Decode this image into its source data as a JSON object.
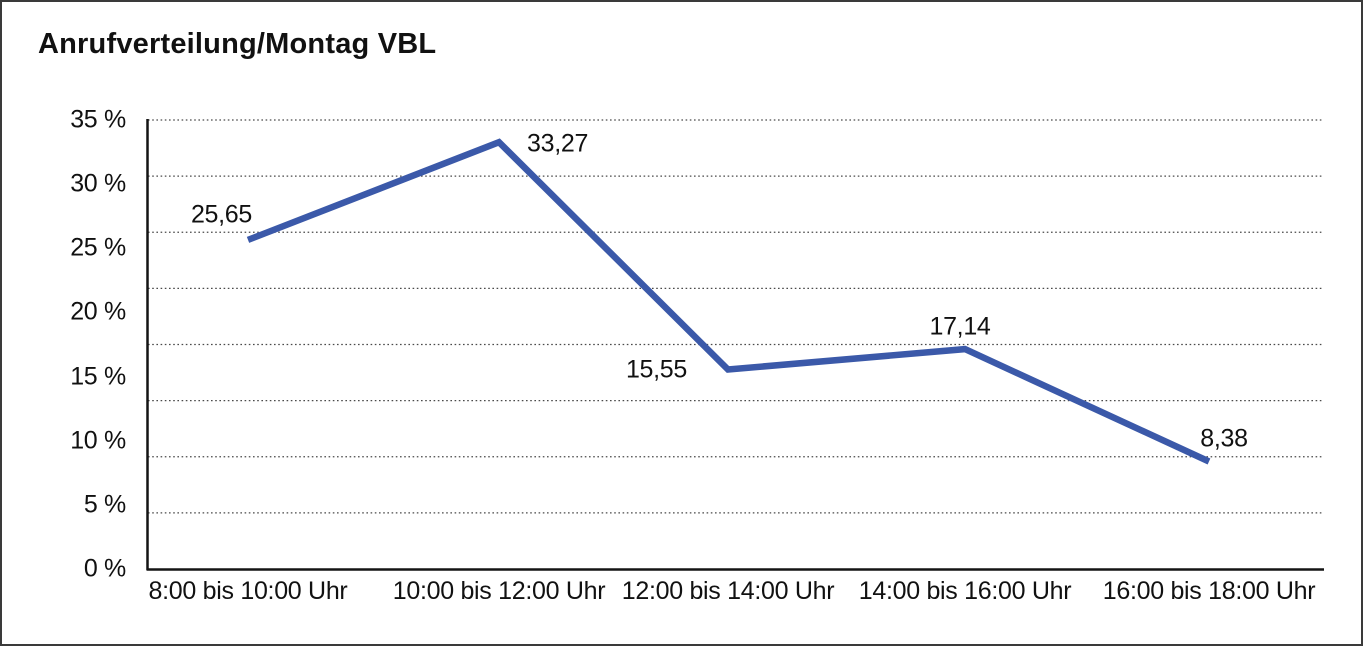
{
  "chart_data": {
    "type": "line",
    "title": "Anrufverteilung/Montag VBL",
    "categories": [
      "8:00 bis 10:00 Uhr",
      "10:00 bis 12:00 Uhr",
      "12:00 bis 14:00 Uhr",
      "14:00 bis 16:00 Uhr",
      "16:00 bis 18:00 Uhr"
    ],
    "values": [
      25.65,
      33.27,
      15.55,
      17.14,
      8.38
    ],
    "point_labels": [
      "25,65",
      "33,27",
      "15,55",
      "17,14",
      "8,38"
    ],
    "y_ticks": [
      "35 %",
      "30 %",
      "25 %",
      "20 %",
      "15 %",
      "10 %",
      "5 %",
      "0 %"
    ],
    "y_tick_values": [
      35,
      30,
      25,
      20,
      15,
      10,
      5,
      0
    ],
    "ylim": [
      0,
      35
    ],
    "xlabel": "",
    "ylabel": "",
    "legend": "none",
    "grid": "horizontal-dotted",
    "gridline_count": 9,
    "line_color": "#3B59A9",
    "axis_color": "#141414",
    "gridline_color": "#4a4a4a"
  }
}
